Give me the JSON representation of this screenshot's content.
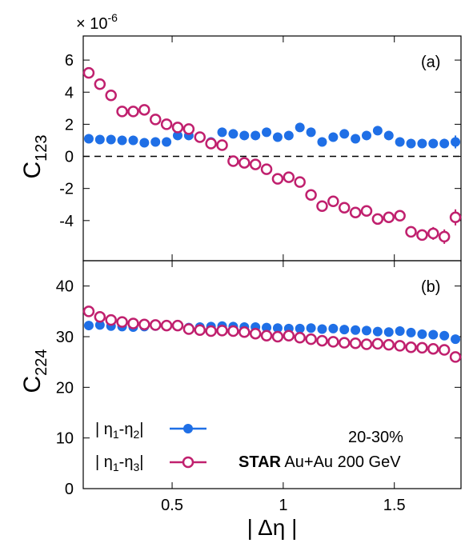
{
  "figure": {
    "multiplier_text": "× 10",
    "multiplier_exp": "-6",
    "x_label_left": "| Δη |",
    "centrality": "20-30%",
    "experiment": "STAR",
    "system": "Au+Au 200 GeV",
    "colors": {
      "blue": "#1f6fe6",
      "magenta": "#c0206e"
    },
    "legend": [
      {
        "text": "| η1-η2|",
        "marker": "filled-circle",
        "color": "#1f6fe6"
      },
      {
        "text": "| η1-η3|",
        "marker": "open-circle",
        "color": "#c0206e"
      }
    ]
  },
  "chart_data": [
    {
      "type": "scatter",
      "panel_label": "(a)",
      "ylabel_base": "C",
      "ylabel_sub": "123",
      "xlim": [
        0.1,
        1.8
      ],
      "ylim": [
        -6.5,
        7.5
      ],
      "xticks": [
        0.5,
        1,
        1.5
      ],
      "yticks": [
        -4,
        -2,
        0,
        2,
        4,
        6
      ],
      "ytick_labels": [
        "-4",
        "-2",
        "0",
        "2",
        "4",
        "6"
      ],
      "zero_line": true,
      "series": [
        {
          "legend_index": 0,
          "x": [
            0.125,
            0.175,
            0.225,
            0.275,
            0.325,
            0.375,
            0.425,
            0.475,
            0.525,
            0.575,
            0.625,
            0.675,
            0.725,
            0.775,
            0.825,
            0.875,
            0.925,
            0.975,
            1.025,
            1.075,
            1.125,
            1.175,
            1.225,
            1.275,
            1.325,
            1.375,
            1.425,
            1.475,
            1.525,
            1.575,
            1.625,
            1.675,
            1.725,
            1.775
          ],
          "y": [
            1.1,
            1.05,
            1.05,
            1.0,
            1.0,
            0.85,
            0.9,
            0.9,
            1.3,
            1.3,
            1.2,
            0.9,
            1.5,
            1.4,
            1.3,
            1.3,
            1.5,
            1.2,
            1.3,
            1.8,
            1.5,
            0.9,
            1.2,
            1.4,
            1.1,
            1.3,
            1.6,
            1.3,
            0.9,
            0.8,
            0.8,
            0.8,
            0.8,
            0.9
          ],
          "err": [
            0.2,
            0.2,
            0.2,
            0.2,
            0.2,
            0.2,
            0.2,
            0.2,
            0.2,
            0.2,
            0.2,
            0.2,
            0.2,
            0.2,
            0.2,
            0.2,
            0.2,
            0.2,
            0.2,
            0.2,
            0.2,
            0.2,
            0.2,
            0.2,
            0.2,
            0.2,
            0.2,
            0.2,
            0.2,
            0.2,
            0.2,
            0.25,
            0.3,
            0.4
          ]
        },
        {
          "legend_index": 1,
          "x": [
            0.125,
            0.175,
            0.225,
            0.275,
            0.325,
            0.375,
            0.425,
            0.475,
            0.525,
            0.575,
            0.625,
            0.675,
            0.725,
            0.775,
            0.825,
            0.875,
            0.925,
            0.975,
            1.025,
            1.075,
            1.125,
            1.175,
            1.225,
            1.275,
            1.325,
            1.375,
            1.425,
            1.475,
            1.525,
            1.575,
            1.625,
            1.675,
            1.725,
            1.775
          ],
          "y": [
            5.2,
            4.5,
            3.8,
            2.8,
            2.8,
            2.9,
            2.3,
            2.0,
            1.8,
            1.7,
            1.2,
            0.8,
            0.7,
            -0.3,
            -0.4,
            -0.5,
            -0.8,
            -1.4,
            -1.3,
            -1.6,
            -2.4,
            -3.1,
            -2.8,
            -3.2,
            -3.5,
            -3.4,
            -3.9,
            -3.8,
            -3.7,
            -4.7,
            -4.9,
            -4.8,
            -5.0,
            -3.8
          ],
          "err": [
            0.25,
            0.25,
            0.25,
            0.25,
            0.25,
            0.25,
            0.25,
            0.25,
            0.25,
            0.25,
            0.25,
            0.25,
            0.25,
            0.25,
            0.25,
            0.25,
            0.25,
            0.25,
            0.25,
            0.25,
            0.25,
            0.25,
            0.25,
            0.25,
            0.25,
            0.3,
            0.3,
            0.3,
            0.3,
            0.35,
            0.35,
            0.4,
            0.45,
            0.5
          ]
        }
      ]
    },
    {
      "type": "scatter",
      "panel_label": "(b)",
      "ylabel_base": "C",
      "ylabel_sub": "224",
      "xlim": [
        0.1,
        1.8
      ],
      "ylim": [
        0,
        45
      ],
      "xticks": [
        0.5,
        1,
        1.5
      ],
      "xtick_labels": [
        "0.5",
        "1",
        "1.5"
      ],
      "yticks": [
        0,
        10,
        20,
        30,
        40
      ],
      "ytick_labels": [
        "0",
        "10",
        "20",
        "30",
        "40"
      ],
      "series": [
        {
          "legend_index": 0,
          "x": [
            0.125,
            0.175,
            0.225,
            0.275,
            0.325,
            0.375,
            0.425,
            0.475,
            0.525,
            0.575,
            0.625,
            0.675,
            0.725,
            0.775,
            0.825,
            0.875,
            0.925,
            0.975,
            1.025,
            1.075,
            1.125,
            1.175,
            1.225,
            1.275,
            1.325,
            1.375,
            1.425,
            1.475,
            1.525,
            1.575,
            1.625,
            1.675,
            1.725,
            1.775
          ],
          "y": [
            32.2,
            32.3,
            32.1,
            32.0,
            31.9,
            32.0,
            32.1,
            32.2,
            32.1,
            31.8,
            31.9,
            32.0,
            32.1,
            32.0,
            31.9,
            31.9,
            31.8,
            31.7,
            31.6,
            31.6,
            31.7,
            31.5,
            31.6,
            31.4,
            31.3,
            31.2,
            31.0,
            30.9,
            31.1,
            30.8,
            30.5,
            30.4,
            30.2,
            29.5
          ],
          "err": [
            0.5,
            0.5,
            0.5,
            0.5,
            0.5,
            0.5,
            0.5,
            0.5,
            0.5,
            0.5,
            0.5,
            0.5,
            0.5,
            0.5,
            0.5,
            0.5,
            0.5,
            0.5,
            0.5,
            0.5,
            0.5,
            0.5,
            0.5,
            0.5,
            0.5,
            0.5,
            0.5,
            0.5,
            0.5,
            0.5,
            0.5,
            0.5,
            0.6,
            0.6
          ]
        },
        {
          "legend_index": 1,
          "x": [
            0.125,
            0.175,
            0.225,
            0.275,
            0.325,
            0.375,
            0.425,
            0.475,
            0.525,
            0.575,
            0.625,
            0.675,
            0.725,
            0.775,
            0.825,
            0.875,
            0.925,
            0.975,
            1.025,
            1.075,
            1.125,
            1.175,
            1.225,
            1.275,
            1.325,
            1.375,
            1.425,
            1.475,
            1.525,
            1.575,
            1.625,
            1.675,
            1.725,
            1.775
          ],
          "y": [
            35.0,
            33.9,
            33.3,
            32.9,
            32.6,
            32.4,
            32.3,
            32.2,
            32.2,
            31.5,
            31.3,
            31.1,
            31.2,
            31.1,
            30.9,
            30.6,
            30.2,
            30.0,
            30.2,
            29.8,
            29.5,
            29.2,
            29.0,
            28.8,
            28.7,
            28.5,
            28.6,
            28.4,
            28.2,
            27.9,
            27.8,
            27.6,
            27.4,
            26.0
          ],
          "err": [
            0.5,
            0.5,
            0.5,
            0.5,
            0.5,
            0.5,
            0.5,
            0.5,
            0.5,
            0.5,
            0.5,
            0.5,
            0.5,
            0.5,
            0.5,
            0.5,
            0.5,
            0.5,
            0.5,
            0.5,
            0.5,
            0.5,
            0.5,
            0.5,
            0.5,
            0.5,
            0.5,
            0.5,
            0.5,
            0.5,
            0.6,
            0.6,
            0.7,
            0.9
          ]
        }
      ]
    }
  ]
}
